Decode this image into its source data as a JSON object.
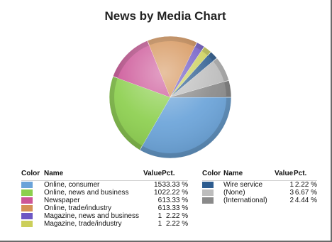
{
  "chart_data": {
    "type": "pie",
    "title": "News by Media Chart",
    "legend_headers": {
      "color": "Color",
      "name": "Name",
      "value": "Value",
      "pct": "Pct."
    },
    "slices": [
      {
        "name": "Online, consumer",
        "value": 15,
        "pct": "33.33 %",
        "color": "#6aa3d9"
      },
      {
        "name": "Online, news and business",
        "value": 10,
        "pct": "22.22 %",
        "color": "#8ccf4e"
      },
      {
        "name": "Newspaper",
        "value": 6,
        "pct": "13.33 %",
        "color": "#cc5597"
      },
      {
        "name": "Online, trade/industry",
        "value": 6,
        "pct": "13.33 %",
        "color": "#d49155"
      },
      {
        "name": "Magazine, news and business",
        "value": 1,
        "pct": "2.22 %",
        "color": "#6d57c4"
      },
      {
        "name": "Magazine, trade/industry",
        "value": 1,
        "pct": "2.22 %",
        "color": "#cccf5a"
      },
      {
        "name": "Wire service",
        "value": 1,
        "pct": "2.22 %",
        "color": "#2d5c8f"
      },
      {
        "name": "(None)",
        "value": 3,
        "pct": "6.67 %",
        "color": "#bdbdbd"
      },
      {
        "name": "(International)",
        "value": 2,
        "pct": "4.44 %",
        "color": "#8a8a8a"
      }
    ],
    "legend_left_count": 6
  }
}
